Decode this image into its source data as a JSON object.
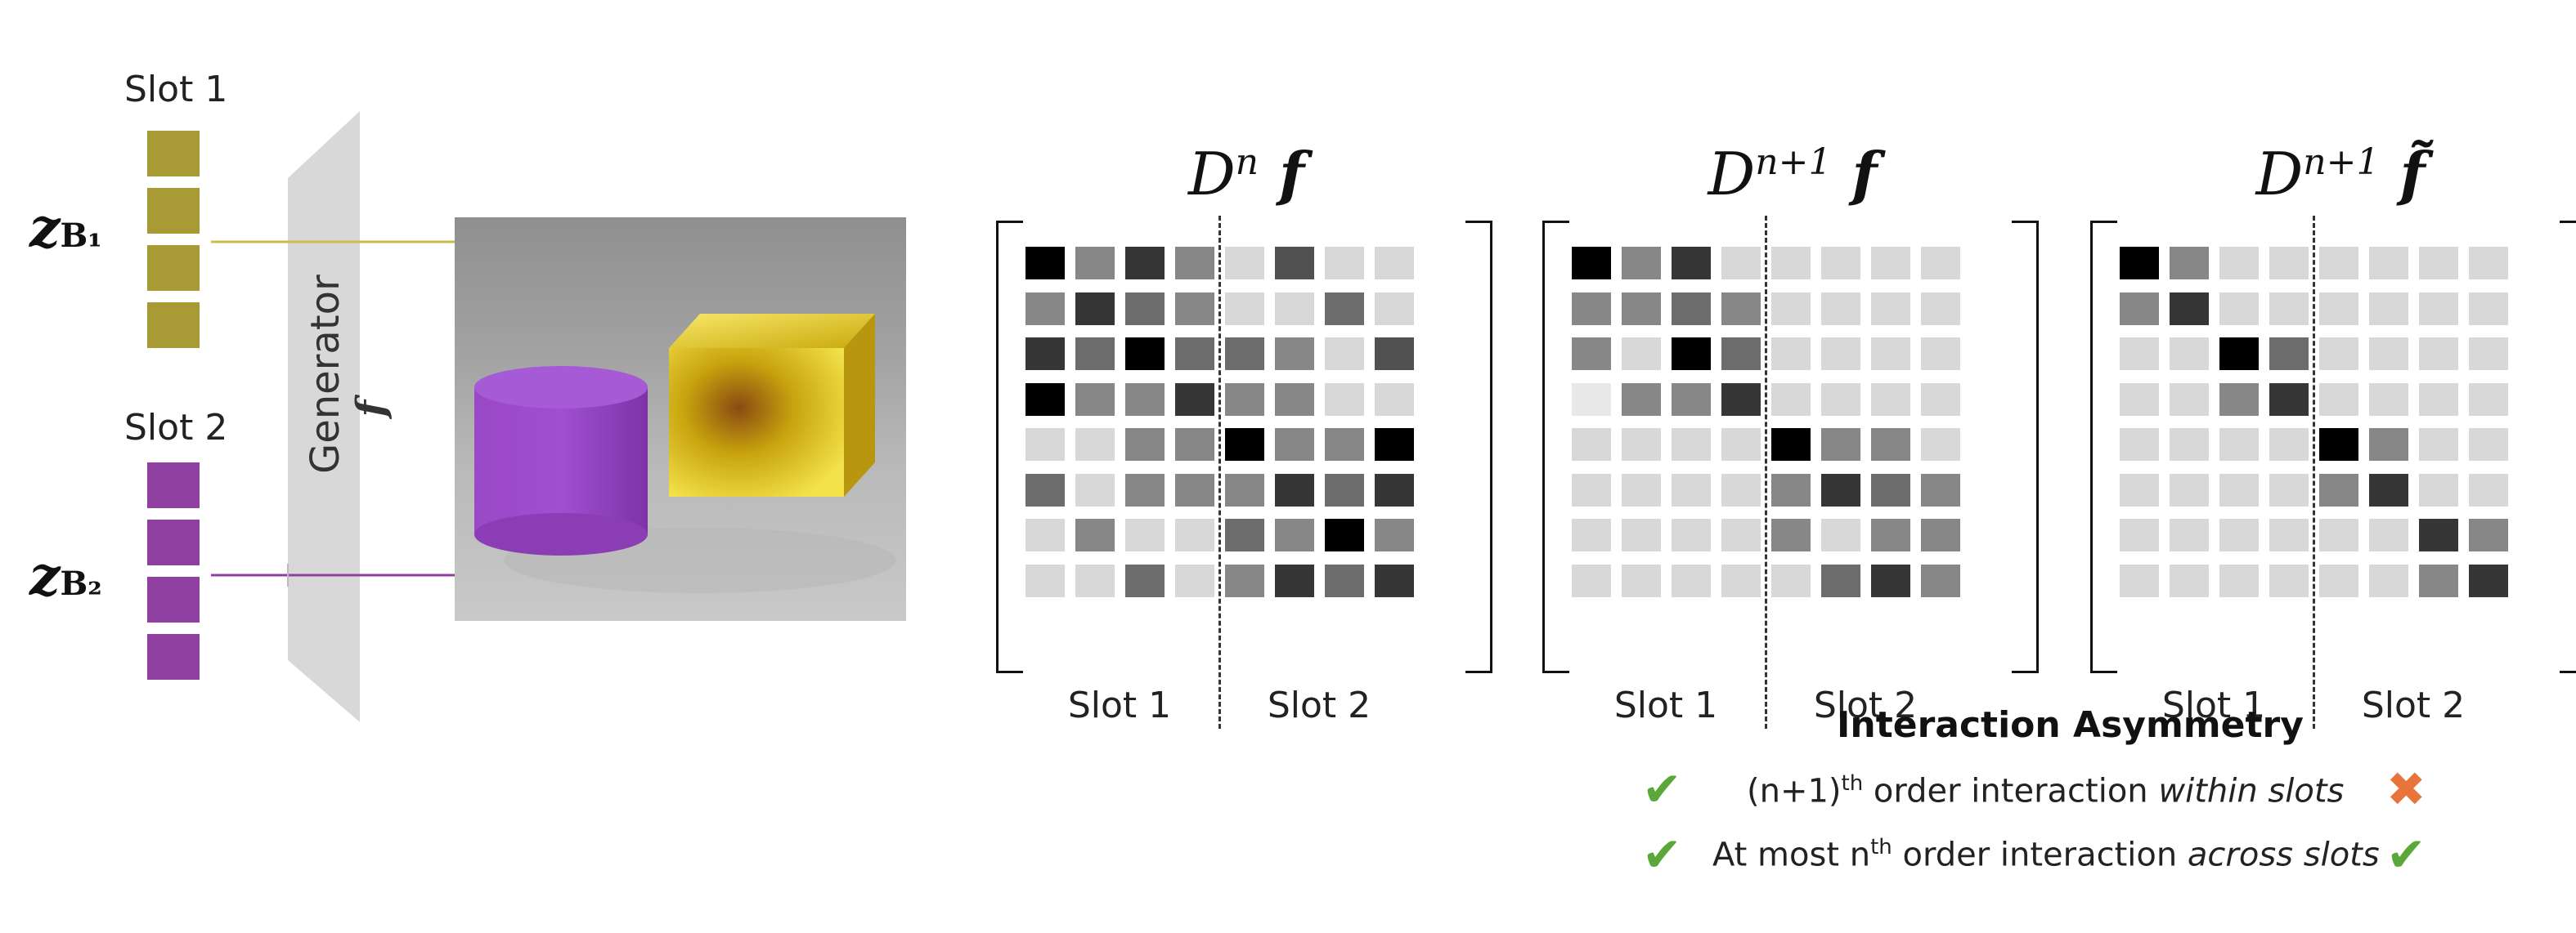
{
  "colors": {
    "slot1": "#a89b36",
    "slot2": "#8e3fa0",
    "generator": "#d8d8d8",
    "check": "#5aa83a",
    "cross": "#e8743b"
  },
  "left": {
    "slot1_label": "Slot 1",
    "slot2_label": "Slot 2",
    "z1_main": "z",
    "z1_sub": "B₁",
    "z2_main": "z",
    "z2_sub": "B₂",
    "generator_label": "Generator",
    "generator_f": "f"
  },
  "matrices": [
    {
      "title_base": "D",
      "title_sup": "n",
      "title_f": "f",
      "slot1_label": "Slot 1",
      "slot2_label": "Slot 2",
      "cells": [
        [
          0,
          5,
          2,
          5,
          8,
          3,
          8,
          8
        ],
        [
          5,
          2,
          4,
          5,
          8,
          8,
          4,
          8
        ],
        [
          2,
          4,
          0,
          4,
          4,
          5,
          8,
          3
        ],
        [
          0,
          5,
          5,
          2,
          5,
          5,
          8,
          8
        ],
        [
          8,
          8,
          5,
          5,
          0,
          5,
          5,
          0
        ],
        [
          4,
          8,
          5,
          5,
          5,
          2,
          4,
          2
        ],
        [
          8,
          5,
          8,
          8,
          4,
          5,
          0,
          5
        ],
        [
          8,
          8,
          4,
          8,
          5,
          2,
          4,
          2
        ]
      ]
    },
    {
      "title_base": "D",
      "title_sup": "n+1",
      "title_f": "f",
      "slot1_label": "Slot 1",
      "slot2_label": "Slot 2",
      "cells": [
        [
          0,
          5,
          2,
          8,
          8,
          8,
          8,
          8
        ],
        [
          5,
          5,
          4,
          5,
          8,
          8,
          8,
          8
        ],
        [
          5,
          8,
          0,
          4,
          8,
          8,
          8,
          8
        ],
        [
          9,
          5,
          5,
          2,
          8,
          8,
          8,
          8
        ],
        [
          8,
          8,
          8,
          8,
          0,
          5,
          5,
          8
        ],
        [
          8,
          8,
          8,
          8,
          5,
          2,
          4,
          5
        ],
        [
          8,
          8,
          8,
          8,
          5,
          8,
          5,
          5
        ],
        [
          8,
          8,
          8,
          8,
          8,
          4,
          2,
          5
        ]
      ]
    },
    {
      "title_base": "D",
      "title_sup": "n+1",
      "title_f": "f̃",
      "slot1_label": "Slot 1",
      "slot2_label": "Slot 2",
      "cells": [
        [
          0,
          5,
          8,
          8,
          8,
          8,
          8,
          8
        ],
        [
          5,
          2,
          8,
          8,
          8,
          8,
          8,
          8
        ],
        [
          8,
          8,
          0,
          4,
          8,
          8,
          8,
          8
        ],
        [
          8,
          8,
          5,
          2,
          8,
          8,
          8,
          8
        ],
        [
          8,
          8,
          8,
          8,
          0,
          5,
          8,
          8
        ],
        [
          8,
          8,
          8,
          8,
          5,
          2,
          8,
          8
        ],
        [
          8,
          8,
          8,
          8,
          8,
          8,
          2,
          5
        ],
        [
          8,
          8,
          8,
          8,
          8,
          8,
          5,
          2
        ]
      ]
    }
  ],
  "legend": {
    "title": "Interaction Asymmetry",
    "row1_prefix": "(n+1)",
    "row1_sup": "th",
    "row1_middle": " order interaction ",
    "row1_italic": "within slots",
    "row2_prefix": "At most n",
    "row2_sup": "th",
    "row2_middle": " order interaction ",
    "row2_italic": "across slots",
    "check_icon": "check-icon",
    "cross_icon": "cross-icon"
  }
}
